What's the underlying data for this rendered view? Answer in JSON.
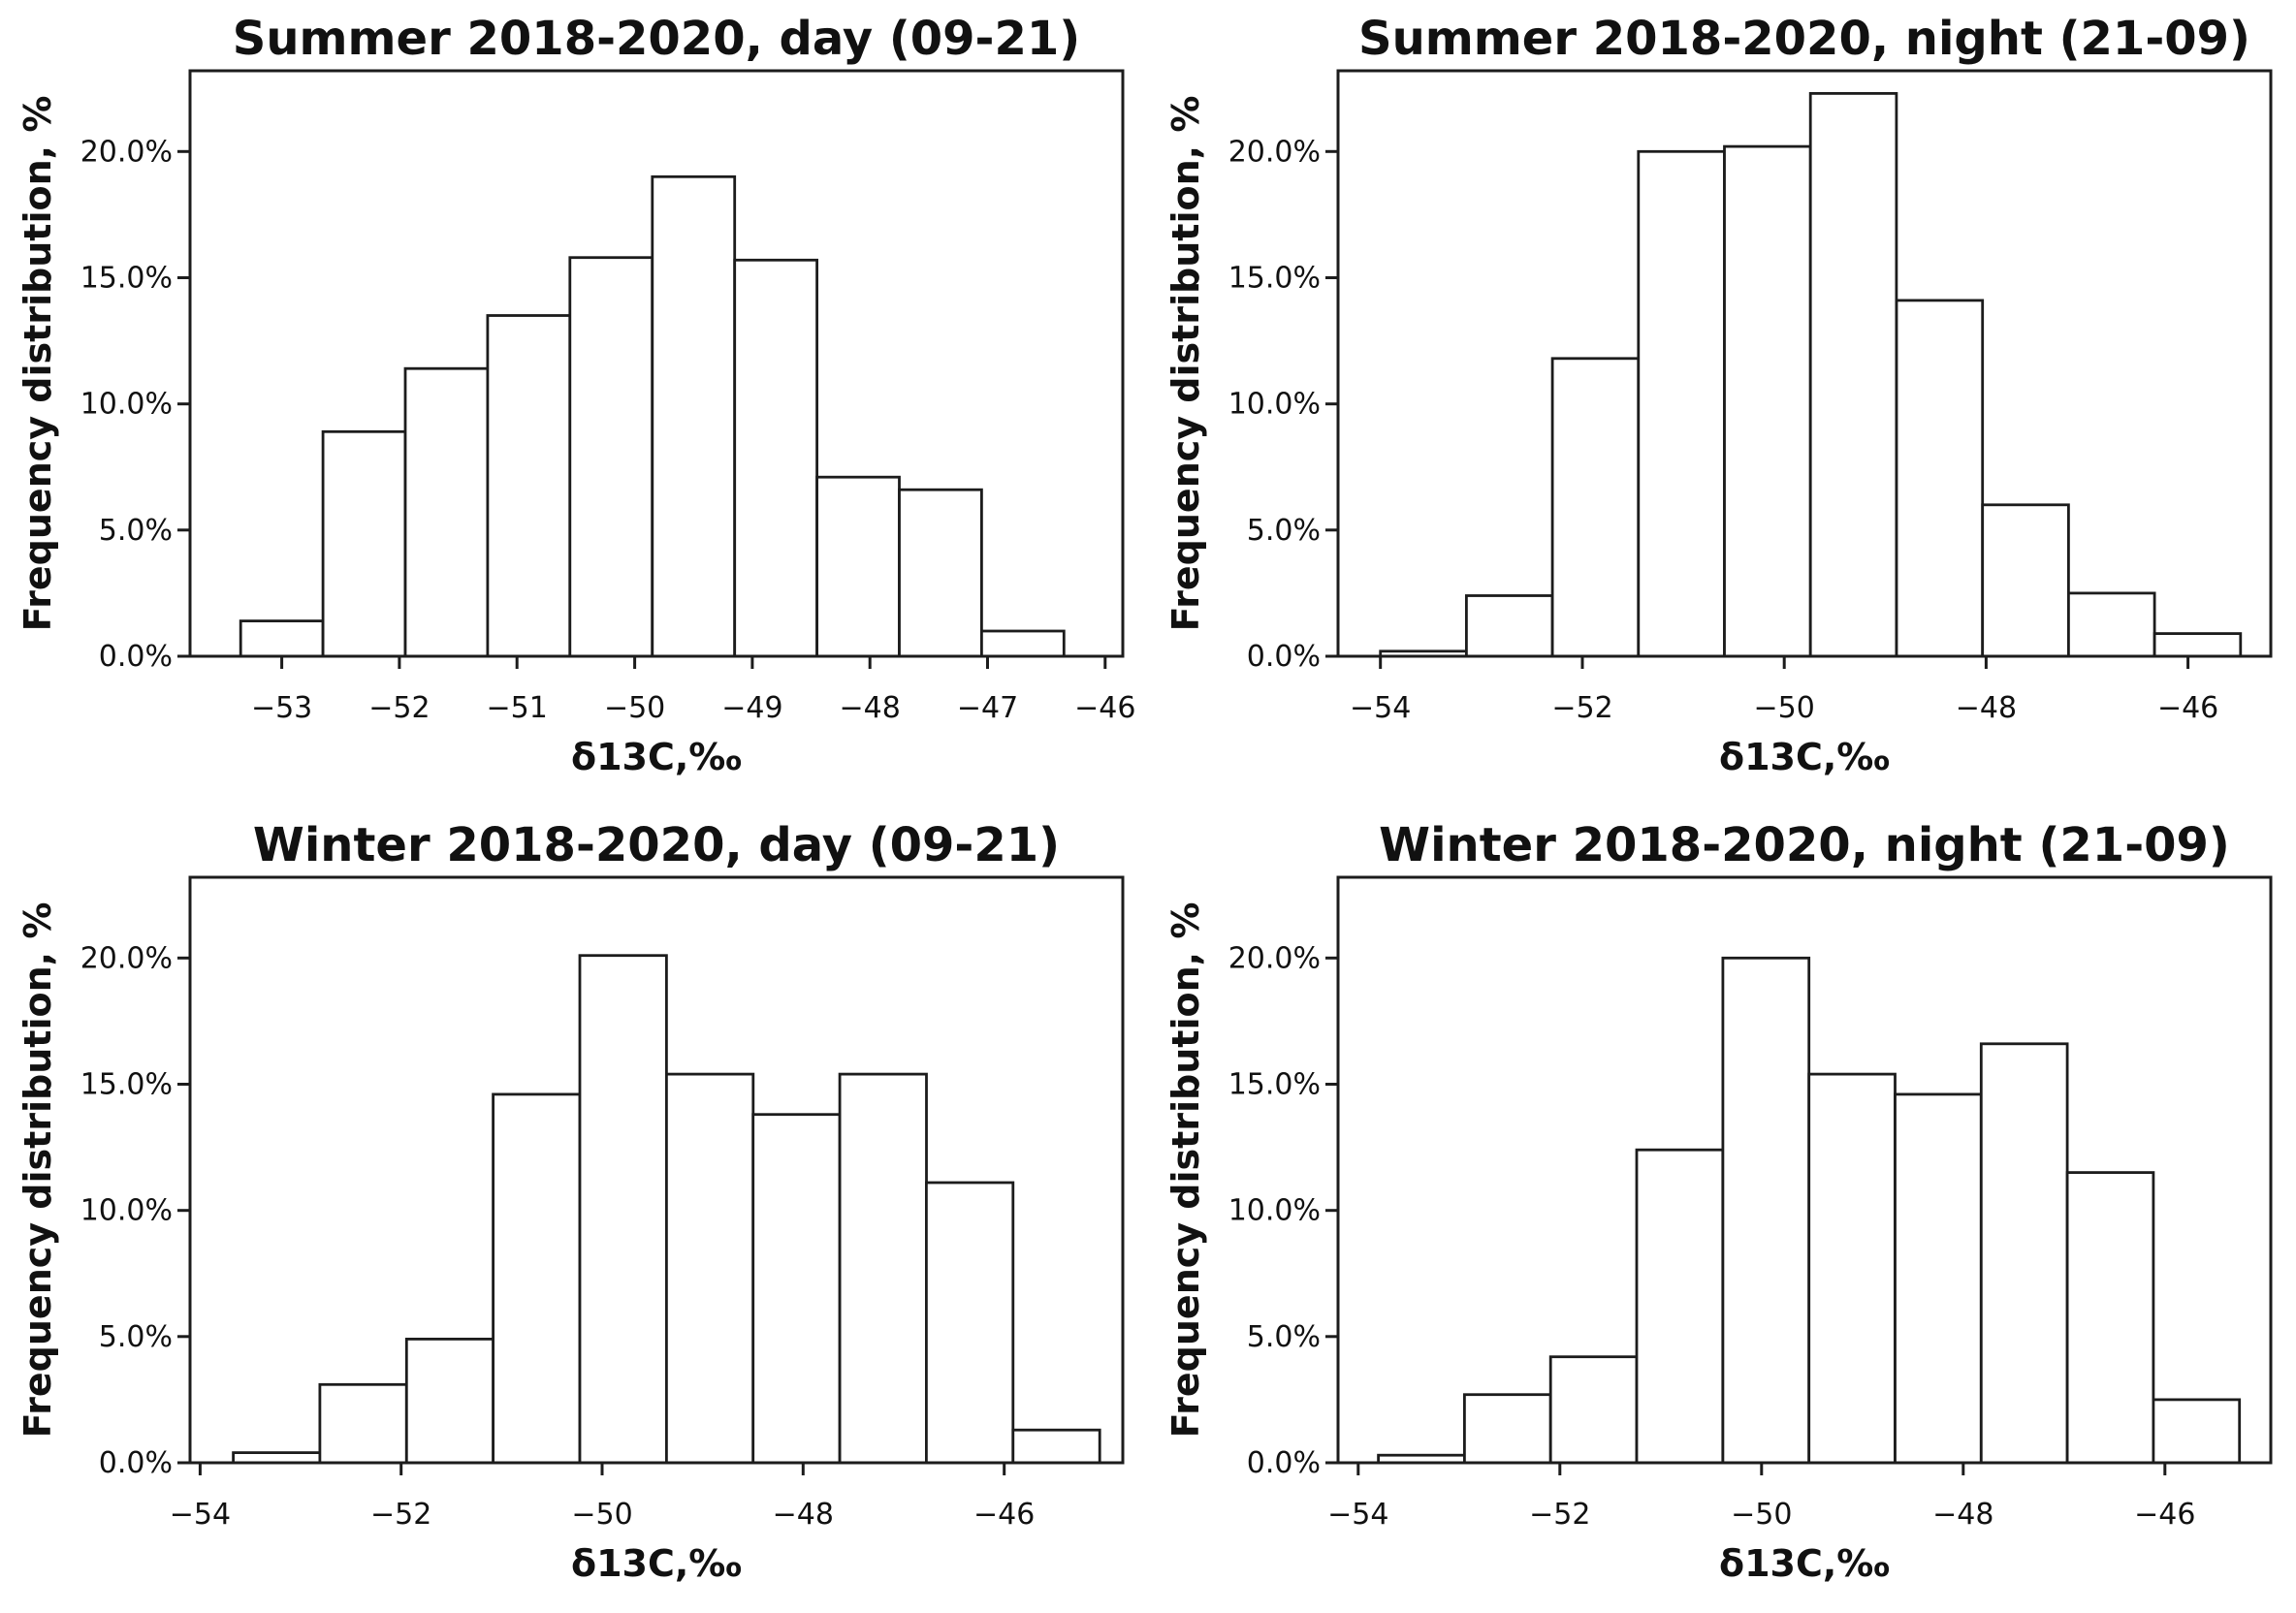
{
  "figure": {
    "background": "#ffffff",
    "text_color": "#111111",
    "line_color": "#1c1c1c",
    "bar_fill": "#ffffff",
    "layout": "2x2 grid of histograms"
  },
  "chart_data": [
    {
      "type": "bar",
      "subtype": "histogram",
      "title": "Summer 2018-2020, day (09-21)",
      "xlabel": "δ13C,‰",
      "ylabel": "Frequency distribution, %",
      "bins": {
        "start": -53.35,
        "width": 0.7
      },
      "values_percent": [
        1.4,
        8.9,
        11.4,
        13.5,
        15.8,
        19.0,
        15.7,
        7.1,
        6.6,
        1.0
      ],
      "xticks": [
        -53,
        -52,
        -51,
        -50,
        -49,
        -48,
        -47,
        -46
      ],
      "yticks": [
        0,
        5,
        10,
        15,
        20
      ],
      "ytick_labels": [
        "0.0%",
        "5.0%",
        "10.0%",
        "15.0%",
        "20.0%"
      ],
      "xlim": [
        -53.78,
        -45.85
      ],
      "ylim": [
        0,
        23.2
      ],
      "grid": false
    },
    {
      "type": "bar",
      "subtype": "histogram",
      "title": "Summer 2018-2020, night (21-09)",
      "xlabel": "δ13C,‰",
      "ylabel": "Frequency distribution, %",
      "bins": {
        "start": -54.0,
        "width": 0.852
      },
      "values_percent": [
        0.2,
        2.4,
        11.8,
        20.0,
        20.2,
        22.3,
        14.1,
        6.0,
        2.5,
        0.9
      ],
      "xticks": [
        -54,
        -52,
        -50,
        -48,
        -46
      ],
      "yticks": [
        0,
        5,
        10,
        15,
        20
      ],
      "ytick_labels": [
        "0.0%",
        "5.0%",
        "10.0%",
        "15.0%",
        "20.0%"
      ],
      "xlim": [
        -54.42,
        -45.18
      ],
      "ylim": [
        0,
        23.2
      ],
      "grid": false
    },
    {
      "type": "bar",
      "subtype": "histogram",
      "title": "Winter 2018-2020, day (09-21)",
      "xlabel": "δ13C,‰",
      "ylabel": "Frequency distribution, %",
      "bins": {
        "start": -53.67,
        "width": 0.862
      },
      "values_percent": [
        0.4,
        3.1,
        4.9,
        14.6,
        20.1,
        15.4,
        13.8,
        15.4,
        11.1,
        1.3
      ],
      "xticks": [
        -54,
        -52,
        -50,
        -48,
        -46
      ],
      "yticks": [
        0,
        5,
        10,
        15,
        20
      ],
      "ytick_labels": [
        "0.0%",
        "5.0%",
        "10.0%",
        "15.0%",
        "20.0%"
      ],
      "xlim": [
        -54.1,
        -44.82
      ],
      "ylim": [
        0,
        23.2
      ],
      "grid": false
    },
    {
      "type": "bar",
      "subtype": "histogram",
      "title": "Winter 2018-2020, night (21-09)",
      "xlabel": "δ13C,‰",
      "ylabel": "Frequency distribution, %",
      "bins": {
        "start": -53.8,
        "width": 0.854
      },
      "values_percent": [
        0.3,
        2.7,
        4.2,
        12.4,
        20.0,
        15.4,
        14.6,
        16.6,
        11.5,
        2.5
      ],
      "xticks": [
        -54,
        -52,
        -50,
        -48,
        -46
      ],
      "yticks": [
        0,
        5,
        10,
        15,
        20
      ],
      "ytick_labels": [
        "0.0%",
        "5.0%",
        "10.0%",
        "15.0%",
        "20.0%"
      ],
      "xlim": [
        -54.2,
        -44.95
      ],
      "ylim": [
        0,
        23.2
      ],
      "grid": false
    }
  ]
}
